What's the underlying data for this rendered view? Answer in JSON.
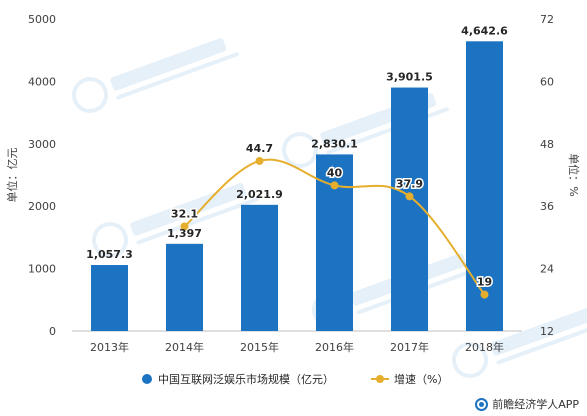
{
  "chart_data": {
    "type": "bar+line",
    "categories": [
      "2013年",
      "2014年",
      "2015年",
      "2016年",
      "2017年",
      "2018年"
    ],
    "series": [
      {
        "name": "中国互联网泛娱乐市场规模（亿元）",
        "type": "bar",
        "axis": "left",
        "values": [
          1057.3,
          1397,
          2021.9,
          2830.1,
          3901.5,
          4642.6
        ],
        "labels": [
          "1,057.3",
          "1,397",
          "2,021.9",
          "2,830.1",
          "3,901.5",
          "4,642.6"
        ],
        "color": "#1b73c1"
      },
      {
        "name": "增速（%）",
        "type": "line",
        "axis": "right",
        "values": [
          null,
          32.1,
          44.7,
          40,
          37.9,
          19
        ],
        "labels": [
          "",
          "32.1",
          "44.7",
          "40",
          "37.9",
          "19"
        ],
        "color": "#e6ae2d"
      }
    ],
    "y_left": {
      "label": "单位：亿元",
      "min": 0,
      "max": 5000,
      "ticks": [
        "0",
        "1000",
        "2000",
        "3000",
        "4000",
        "5000"
      ]
    },
    "y_right": {
      "label": "单位：%",
      "min": 12,
      "max": 72,
      "ticks": [
        "12",
        "24",
        "36",
        "48",
        "60",
        "72"
      ]
    },
    "grid": false,
    "legend": "bottom"
  },
  "footer": {
    "text": "前瞻经济学人APP",
    "icon": "qianzhan-logo-icon"
  }
}
